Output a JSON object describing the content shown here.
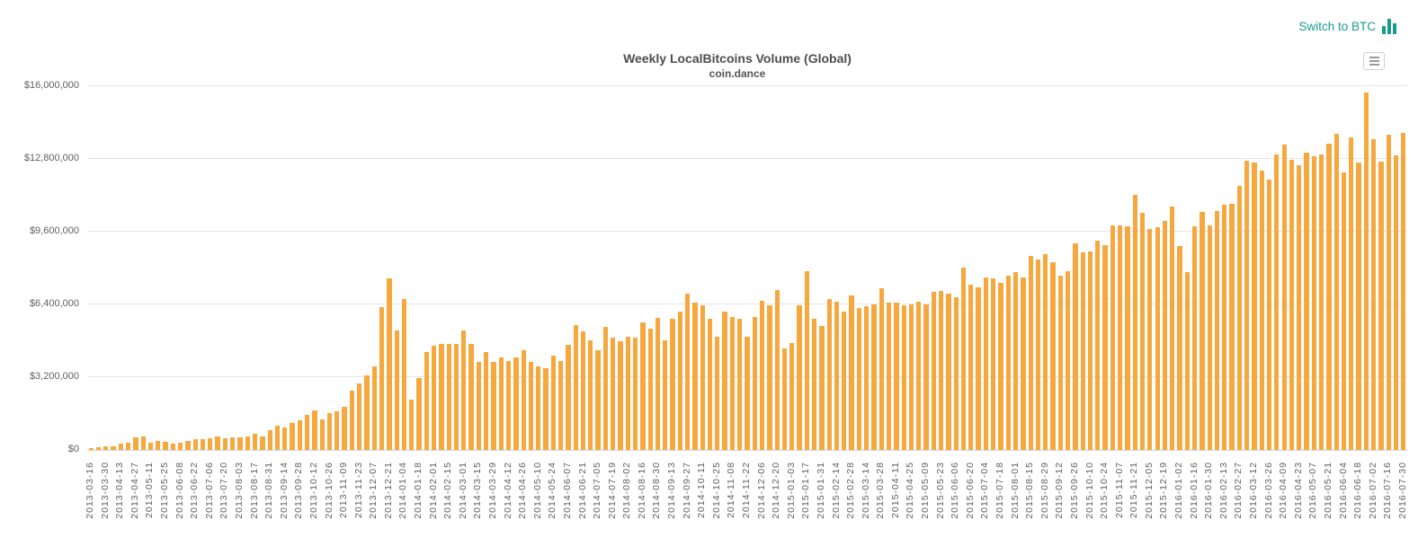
{
  "header": {
    "switch_link_label": "Switch to BTC"
  },
  "colors": {
    "bar": "#F6A83F",
    "link": "#189B8C",
    "grid": "#E6E6E6",
    "axis_label": "#606060",
    "title": "#4D4D4D"
  },
  "chart_data": {
    "type": "bar",
    "title": "Weekly LocalBitcoins Volume (Global)",
    "subtitle": "coin.dance",
    "xlabel": "",
    "ylabel": "",
    "ylim": [
      0,
      16000000
    ],
    "y_ticks": [
      "$0",
      "$3,200,000",
      "$6,400,000",
      "$9,600,000",
      "$12,800,000",
      "$16,000,000"
    ],
    "grid": true,
    "legend": "none",
    "x_tick_labels_every": 2,
    "dates": [
      "2013-03-16",
      "2013-03-23",
      "2013-03-30",
      "2013-04-06",
      "2013-04-13",
      "2013-04-20",
      "2013-04-27",
      "2013-05-04",
      "2013-05-11",
      "2013-05-18",
      "2013-05-25",
      "2013-06-01",
      "2013-06-08",
      "2013-06-15",
      "2013-06-22",
      "2013-06-29",
      "2013-07-06",
      "2013-07-13",
      "2013-07-20",
      "2013-07-27",
      "2013-08-03",
      "2013-08-10",
      "2013-08-17",
      "2013-08-24",
      "2013-08-31",
      "2013-09-07",
      "2013-09-14",
      "2013-09-21",
      "2013-09-28",
      "2013-10-05",
      "2013-10-12",
      "2013-10-19",
      "2013-10-26",
      "2013-11-02",
      "2013-11-09",
      "2013-11-16",
      "2013-11-23",
      "2013-11-30",
      "2013-12-07",
      "2013-12-14",
      "2013-12-21",
      "2013-12-28",
      "2014-01-04",
      "2014-01-11",
      "2014-01-18",
      "2014-01-25",
      "2014-02-01",
      "2014-02-08",
      "2014-02-15",
      "2014-02-22",
      "2014-03-01",
      "2014-03-08",
      "2014-03-15",
      "2014-03-22",
      "2014-03-29",
      "2014-04-05",
      "2014-04-12",
      "2014-04-19",
      "2014-04-26",
      "2014-05-03",
      "2014-05-10",
      "2014-05-17",
      "2014-05-24",
      "2014-05-31",
      "2014-06-07",
      "2014-06-14",
      "2014-06-21",
      "2014-06-28",
      "2014-07-05",
      "2014-07-12",
      "2014-07-19",
      "2014-07-26",
      "2014-08-02",
      "2014-08-09",
      "2014-08-16",
      "2014-08-23",
      "2014-08-30",
      "2014-09-06",
      "2014-09-13",
      "2014-09-20",
      "2014-09-27",
      "2014-10-04",
      "2014-10-11",
      "2014-10-18",
      "2014-10-25",
      "2014-11-01",
      "2014-11-08",
      "2014-11-15",
      "2014-11-22",
      "2014-11-29",
      "2014-12-06",
      "2014-12-13",
      "2014-12-20",
      "2014-12-27",
      "2015-01-03",
      "2015-01-10",
      "2015-01-17",
      "2015-01-24",
      "2015-01-31",
      "2015-02-07",
      "2015-02-14",
      "2015-02-21",
      "2015-02-28",
      "2015-03-07",
      "2015-03-14",
      "2015-03-21",
      "2015-03-28",
      "2015-04-04",
      "2015-04-11",
      "2015-04-18",
      "2015-04-25",
      "2015-05-02",
      "2015-05-09",
      "2015-05-16",
      "2015-05-23",
      "2015-05-30",
      "2015-06-06",
      "2015-06-13",
      "2015-06-20",
      "2015-06-27",
      "2015-07-04",
      "2015-07-11",
      "2015-07-18",
      "2015-07-25",
      "2015-08-01",
      "2015-08-08",
      "2015-08-15",
      "2015-08-22",
      "2015-08-29",
      "2015-09-05",
      "2015-09-12",
      "2015-09-19",
      "2015-09-26",
      "2015-10-03",
      "2015-10-10",
      "2015-10-17",
      "2015-10-24",
      "2015-10-31",
      "2015-11-07",
      "2015-11-14",
      "2015-11-21",
      "2015-11-28",
      "2015-12-05",
      "2015-12-12",
      "2015-12-19",
      "2015-12-26",
      "2016-01-02",
      "2016-01-09",
      "2016-01-16",
      "2016-01-23",
      "2016-01-30",
      "2016-02-06",
      "2016-02-13",
      "2016-02-20",
      "2016-02-27",
      "2016-03-05",
      "2016-03-12",
      "2016-03-19",
      "2016-03-26",
      "2016-04-02",
      "2016-04-09",
      "2016-04-16",
      "2016-04-23",
      "2016-04-30",
      "2016-05-07",
      "2016-05-14",
      "2016-05-21",
      "2016-05-28",
      "2016-06-04",
      "2016-06-11",
      "2016-06-18",
      "2016-06-25",
      "2016-07-02",
      "2016-07-09",
      "2016-07-16",
      "2016-07-23",
      "2016-07-30"
    ],
    "values": [
      80000,
      130000,
      160000,
      160000,
      260000,
      330000,
      550000,
      590000,
      330000,
      400000,
      370000,
      290000,
      330000,
      400000,
      460000,
      460000,
      500000,
      590000,
      530000,
      550000,
      550000,
      590000,
      720000,
      590000,
      860000,
      1050000,
      990000,
      1190000,
      1320000,
      1550000,
      1750000,
      1350000,
      1620000,
      1690000,
      1880000,
      2610000,
      2910000,
      3270000,
      3660000,
      6290000,
      7540000,
      5240000,
      6620000,
      2210000,
      3170000,
      4320000,
      4580000,
      4650000,
      4670000,
      4650000,
      5240000,
      4670000,
      3860000,
      4320000,
      3860000,
      4060000,
      3920000,
      4060000,
      4380000,
      3860000,
      3660000,
      3590000,
      4160000,
      3920000,
      4620000,
      5500000,
      5200000,
      4840000,
      4380000,
      5410000,
      4940000,
      4780000,
      4980000,
      4940000,
      5630000,
      5330000,
      5810000,
      4810000,
      5770000,
      6100000,
      6890000,
      6460000,
      6380000,
      5770000,
      4980000,
      6070000,
      5830000,
      5770000,
      4980000,
      5830000,
      6560000,
      6360000,
      7020000,
      4450000,
      4710000,
      6380000,
      7870000,
      5770000,
      5440000,
      6620000,
      6510000,
      6090000,
      6780000,
      6250000,
      6330000,
      6420000,
      7120000,
      6490000,
      6460000,
      6380000,
      6420000,
      6510000,
      6420000,
      6950000,
      6990000,
      6860000,
      6730000,
      8040000,
      7250000,
      7150000,
      7600000,
      7540000,
      7350000,
      7670000,
      7810000,
      7570000,
      8530000,
      8360000,
      8620000,
      8270000,
      7670000,
      7870000,
      9100000,
      8700000,
      8730000,
      9190000,
      9020000,
      9870000,
      9870000,
      9820000,
      11230000,
      10440000,
      9710000,
      9780000,
      10070000,
      10700000,
      8960000,
      7830000,
      9820000,
      10480000,
      9870000,
      10520000,
      10770000,
      10810000,
      11630000,
      12710000,
      12660000,
      12290000,
      11890000,
      13010000,
      13450000,
      12750000,
      12530000,
      13090000,
      12920000,
      13010000,
      13470000,
      13900000,
      12220000,
      13740000,
      12640000,
      15710000,
      13670000,
      12700000,
      13870000,
      12970000,
      13930000
    ]
  }
}
